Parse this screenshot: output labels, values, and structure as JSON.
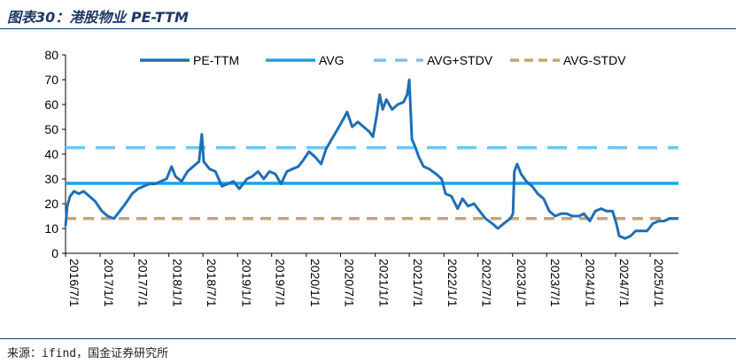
{
  "header": {
    "title": "图表30：港股物业 PE-TTM"
  },
  "footer": {
    "source": "来源：ifind，国金证券研究所"
  },
  "colors": {
    "pe": "#1f6fb5",
    "avg": "#1ea0e6",
    "avg_plus": "#74c5ee",
    "avg_minus": "#c4a574",
    "axis": "#000000"
  },
  "chart_data": {
    "type": "line",
    "title": "港股物业 PE-TTM",
    "xlabel": "",
    "ylabel": "",
    "ylim": [
      0,
      80
    ],
    "yticks": [
      0,
      10,
      20,
      30,
      40,
      50,
      60,
      70,
      80
    ],
    "xlim": [
      "2016-07-01",
      "2025-05-31"
    ],
    "xticks": [
      "2016/7/1",
      "2017/1/1",
      "2017/7/1",
      "2018/1/1",
      "2018/7/1",
      "2019/1/1",
      "2019/7/1",
      "2020/1/1",
      "2020/7/1",
      "2021/1/1",
      "2021/7/1",
      "2022/1/1",
      "2022/7/1",
      "2023/1/1",
      "2023/7/1",
      "2024/1/1",
      "2024/7/1",
      "2025/1/1"
    ],
    "legend": [
      "PE-TTM",
      "AVG",
      "AVG+STDV",
      "AVG-STDV"
    ],
    "legend_position": "top-center",
    "series": [
      {
        "name": "PE-TTM",
        "points": [
          [
            "2016-07-01",
            11
          ],
          [
            "2016-07-10",
            19
          ],
          [
            "2016-07-25",
            23
          ],
          [
            "2016-08-15",
            25
          ],
          [
            "2016-09-10",
            24
          ],
          [
            "2016-10-05",
            25
          ],
          [
            "2016-11-05",
            23
          ],
          [
            "2016-12-05",
            21
          ],
          [
            "2017-01-10",
            17
          ],
          [
            "2017-02-10",
            15
          ],
          [
            "2017-03-15",
            14
          ],
          [
            "2017-04-15",
            17
          ],
          [
            "2017-05-15",
            20
          ],
          [
            "2017-06-20",
            24
          ],
          [
            "2017-07-20",
            26
          ],
          [
            "2017-08-20",
            27
          ],
          [
            "2017-09-20",
            28
          ],
          [
            "2017-10-20",
            28
          ],
          [
            "2017-11-20",
            29
          ],
          [
            "2017-12-20",
            30
          ],
          [
            "2018-01-15",
            35
          ],
          [
            "2018-02-05",
            31
          ],
          [
            "2018-03-10",
            29
          ],
          [
            "2018-04-10",
            33
          ],
          [
            "2018-05-10",
            35
          ],
          [
            "2018-06-10",
            37
          ],
          [
            "2018-06-25",
            48
          ],
          [
            "2018-07-05",
            37
          ],
          [
            "2018-08-05",
            34
          ],
          [
            "2018-09-05",
            33
          ],
          [
            "2018-10-10",
            27
          ],
          [
            "2018-11-10",
            28
          ],
          [
            "2018-12-10",
            29
          ],
          [
            "2019-01-10",
            26
          ],
          [
            "2019-02-20",
            30
          ],
          [
            "2019-03-20",
            31
          ],
          [
            "2019-04-20",
            33
          ],
          [
            "2019-05-20",
            30
          ],
          [
            "2019-06-20",
            33
          ],
          [
            "2019-07-20",
            32
          ],
          [
            "2019-08-20",
            28
          ],
          [
            "2019-09-20",
            33
          ],
          [
            "2019-10-20",
            34
          ],
          [
            "2019-11-20",
            35
          ],
          [
            "2019-12-20",
            38
          ],
          [
            "2020-01-15",
            41
          ],
          [
            "2020-02-15",
            39
          ],
          [
            "2020-03-20",
            36
          ],
          [
            "2020-04-15",
            42
          ],
          [
            "2020-05-15",
            46
          ],
          [
            "2020-06-15",
            50
          ],
          [
            "2020-07-15",
            54
          ],
          [
            "2020-08-05",
            57
          ],
          [
            "2020-09-01",
            51
          ],
          [
            "2020-10-01",
            53
          ],
          [
            "2020-11-01",
            51
          ],
          [
            "2020-12-01",
            49
          ],
          [
            "2020-12-20",
            47
          ],
          [
            "2021-01-10",
            56
          ],
          [
            "2021-01-25",
            64
          ],
          [
            "2021-02-10",
            58
          ],
          [
            "2021-03-01",
            62
          ],
          [
            "2021-04-01",
            58
          ],
          [
            "2021-05-01",
            60
          ],
          [
            "2021-06-01",
            61
          ],
          [
            "2021-06-20",
            64
          ],
          [
            "2021-07-01",
            70
          ],
          [
            "2021-07-15",
            46
          ],
          [
            "2021-08-01",
            43
          ],
          [
            "2021-08-20",
            39
          ],
          [
            "2021-09-15",
            35
          ],
          [
            "2021-10-15",
            34
          ],
          [
            "2021-11-20",
            32
          ],
          [
            "2021-12-20",
            30
          ],
          [
            "2022-01-10",
            24
          ],
          [
            "2022-02-10",
            23
          ],
          [
            "2022-03-15",
            18
          ],
          [
            "2022-04-10",
            22
          ],
          [
            "2022-05-10",
            19
          ],
          [
            "2022-06-10",
            20
          ],
          [
            "2022-07-10",
            17
          ],
          [
            "2022-08-10",
            14
          ],
          [
            "2022-09-15",
            12
          ],
          [
            "2022-10-15",
            10
          ],
          [
            "2022-11-15",
            12
          ],
          [
            "2022-12-20",
            14
          ],
          [
            "2023-01-03",
            16
          ],
          [
            "2023-01-10",
            33
          ],
          [
            "2023-01-25",
            36
          ],
          [
            "2023-02-15",
            32
          ],
          [
            "2023-03-15",
            29
          ],
          [
            "2023-04-15",
            27
          ],
          [
            "2023-05-15",
            24
          ],
          [
            "2023-06-15",
            22
          ],
          [
            "2023-07-15",
            17
          ],
          [
            "2023-08-15",
            15
          ],
          [
            "2023-09-15",
            16
          ],
          [
            "2023-10-15",
            16
          ],
          [
            "2023-11-15",
            15
          ],
          [
            "2023-12-20",
            15
          ],
          [
            "2024-01-15",
            16
          ],
          [
            "2024-02-15",
            13
          ],
          [
            "2024-03-15",
            17
          ],
          [
            "2024-04-15",
            18
          ],
          [
            "2024-05-15",
            17
          ],
          [
            "2024-06-15",
            17
          ],
          [
            "2024-07-05",
            12
          ],
          [
            "2024-07-20",
            7
          ],
          [
            "2024-08-20",
            6
          ],
          [
            "2024-09-20",
            7
          ],
          [
            "2024-10-15",
            9
          ],
          [
            "2024-11-15",
            9
          ],
          [
            "2024-12-15",
            9
          ],
          [
            "2025-01-15",
            12
          ],
          [
            "2025-02-15",
            13
          ],
          [
            "2025-03-15",
            13
          ],
          [
            "2025-04-15",
            14
          ],
          [
            "2025-05-31",
            14
          ]
        ]
      },
      {
        "name": "AVG",
        "value": 28.2
      },
      {
        "name": "AVG+STDV",
        "value": 42.6
      },
      {
        "name": "AVG-STDV",
        "value": 14.0
      }
    ]
  }
}
